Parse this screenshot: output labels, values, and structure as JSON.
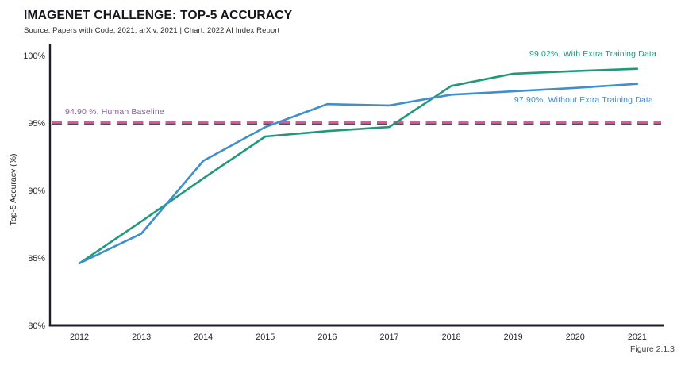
{
  "header": {
    "title": "IMAGENET CHALLENGE: TOP-5 ACCURACY",
    "subtitle": "Source: Papers with Code, 2021; arXiv, 2021 | Chart: 2022 AI Index Report"
  },
  "figure_label": "Figure 2.1.3",
  "colors": {
    "axis": "#1e1e28",
    "tick_text": "#26262e",
    "baseline_pink": "#d55f95",
    "baseline_dark": "#4f4d60",
    "baseline_label": "#8a5f9b"
  },
  "chart_data": {
    "type": "line",
    "title": "IMAGENET CHALLENGE: TOP-5 ACCURACY",
    "xlabel": "",
    "ylabel": "Top-5 Accuracy (%)",
    "x": [
      2012,
      2013,
      2014,
      2015,
      2016,
      2017,
      2018,
      2019,
      2020,
      2021
    ],
    "x_labels": [
      "2012",
      "2013",
      "2014",
      "2015",
      "2016",
      "2017",
      "2018",
      "2019",
      "2020",
      "2021"
    ],
    "series": [
      {
        "name": "With Extra Training Data",
        "label": "99.02%, With Extra Training Data",
        "color": "#20997a",
        "values": [
          84.6,
          87.7,
          90.9,
          94.0,
          94.4,
          94.7,
          97.75,
          98.65,
          98.85,
          99.02
        ]
      },
      {
        "name": "Without Extra Training Data",
        "label": "97.90%, Without Extra Training Data",
        "color": "#3f8ecd",
        "values": [
          84.6,
          86.8,
          92.2,
          94.7,
          96.4,
          96.3,
          97.1,
          97.35,
          97.6,
          97.9
        ]
      }
    ],
    "baseline": {
      "value": 94.9,
      "label": "94.90 %, Human Baseline"
    },
    "ylim": [
      80,
      100
    ],
    "yticks": [
      {
        "value": 80,
        "label": "80%"
      },
      {
        "value": 85,
        "label": "85%"
      },
      {
        "value": 90,
        "label": "90%"
      },
      {
        "value": 95,
        "label": "95%"
      },
      {
        "value": 100,
        "label": "100%"
      }
    ],
    "grid": false,
    "legend_position": "annotations-right"
  }
}
